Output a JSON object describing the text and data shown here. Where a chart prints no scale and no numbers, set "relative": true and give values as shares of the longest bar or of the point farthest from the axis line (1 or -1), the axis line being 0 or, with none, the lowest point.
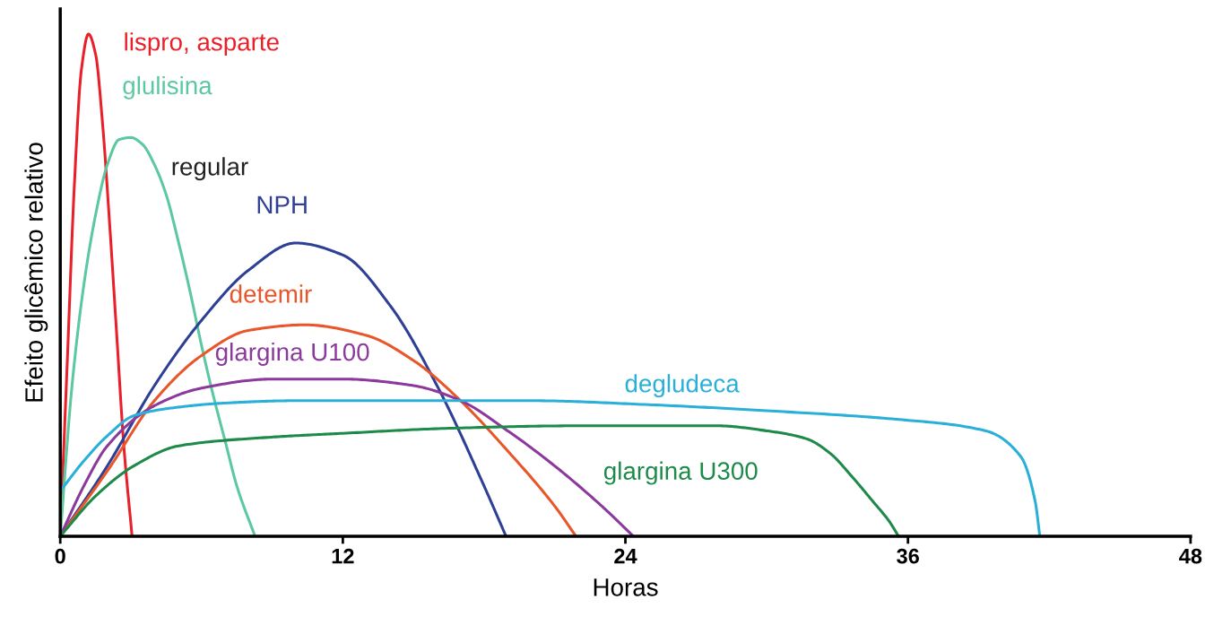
{
  "chart_data": {
    "type": "line",
    "relative": true,
    "xlabel": "Horas",
    "ylabel": "Efeito glicêmico relativo",
    "xlim": [
      0,
      48
    ],
    "xticks": [
      0,
      12,
      24,
      36,
      48
    ],
    "grid": false,
    "legend": false,
    "marker": "none",
    "line_style": "solid",
    "series": [
      {
        "name": "lispro, asparte",
        "color": "#e8202a",
        "x": [
          0,
          0.3,
          0.6,
          0.9,
          1.2,
          1.5,
          1.8,
          2.1,
          2.4,
          2.7,
          3.05
        ],
        "values": [
          0,
          0.35,
          0.7,
          0.93,
          1.0,
          0.96,
          0.82,
          0.62,
          0.4,
          0.18,
          0
        ]
      },
      {
        "name": "glulisina",
        "color": "#5cc8a0",
        "x": [
          0,
          0.5,
          1,
          1.5,
          2,
          2.5,
          3,
          3.5,
          4,
          4.5,
          5,
          5.5,
          6,
          6.5,
          7,
          7.5,
          8.27
        ],
        "values": [
          0,
          0.3,
          0.5,
          0.64,
          0.74,
          0.79,
          0.794,
          0.78,
          0.74,
          0.68,
          0.59,
          0.49,
          0.38,
          0.28,
          0.19,
          0.1,
          0
        ]
      },
      {
        "name": "NPH",
        "color": "#2e3f96",
        "x": [
          0,
          2,
          4,
          6,
          8,
          10,
          12,
          14,
          16,
          18,
          18.93
        ],
        "values": [
          0,
          0.14,
          0.3,
          0.43,
          0.53,
          0.584,
          0.56,
          0.46,
          0.3,
          0.1,
          0
        ]
      },
      {
        "name": "detemir",
        "color": "#e8562a",
        "x": [
          0,
          2,
          4,
          6,
          8,
          10.4,
          13,
          15,
          17,
          19,
          21,
          21.9
        ],
        "values": [
          0,
          0.13,
          0.27,
          0.36,
          0.41,
          0.421,
          0.4,
          0.35,
          0.27,
          0.17,
          0.06,
          0
        ]
      },
      {
        "name": "glargina U100",
        "color": "#8b3a9c",
        "x": [
          0,
          1,
          2,
          4,
          6,
          9,
          12,
          15,
          17,
          19,
          21,
          23,
          24.34
        ],
        "values": [
          0,
          0.1,
          0.18,
          0.26,
          0.295,
          0.313,
          0.313,
          0.3,
          0.27,
          0.21,
          0.14,
          0.06,
          0
        ]
      },
      {
        "name": "degludeca",
        "color": "#2ab0d8",
        "x": [
          0,
          1,
          2,
          3.12,
          5,
          6.9,
          10,
          15,
          20,
          25,
          30,
          35.5,
          39.3,
          40.8,
          41.4,
          41.6
        ],
        "values": [
          0.09,
          0.15,
          0.2,
          0.24,
          0.257,
          0.265,
          0.27,
          0.27,
          0.27,
          0.262,
          0.25,
          0.233,
          0.21,
          0.158,
          0.07,
          0
        ]
      },
      {
        "name": "glargina U300",
        "color": "#1e8a4a",
        "x": [
          0,
          1.5,
          3.12,
          5.03,
          8.84,
          12,
          16.5,
          22,
          27.9,
          30,
          31.7,
          32.7,
          33.6,
          34.5,
          35.2,
          35.6
        ],
        "values": [
          0,
          0.08,
          0.14,
          0.18,
          0.197,
          0.205,
          0.215,
          0.22,
          0.22,
          0.21,
          0.194,
          0.165,
          0.12,
          0.07,
          0.03,
          0
        ]
      }
    ],
    "annotations": [
      "regular"
    ]
  }
}
